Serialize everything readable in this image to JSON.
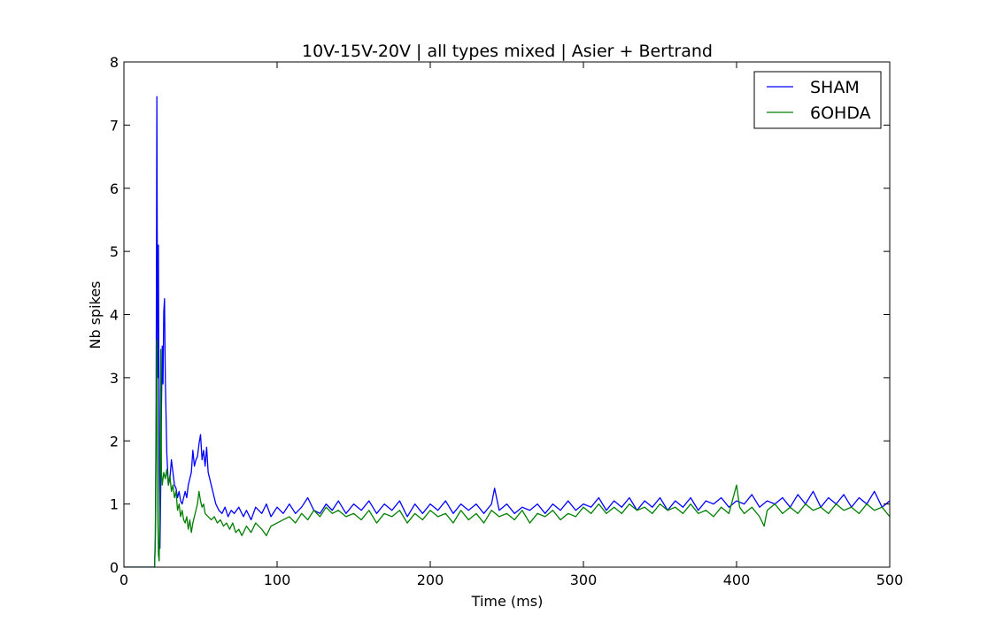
{
  "chart_data": {
    "type": "line",
    "title": "10V-15V-20V | all types mixed | Asier + Bertrand",
    "xlabel": "Time (ms)",
    "ylabel": "Nb spikes",
    "xlim": [
      0,
      500
    ],
    "ylim": [
      0,
      8
    ],
    "xticks": [
      "0",
      "100",
      "200",
      "300",
      "400",
      "500"
    ],
    "yticks": [
      "0",
      "1",
      "2",
      "3",
      "4",
      "5",
      "6",
      "7",
      "8"
    ],
    "grid": false,
    "legend_position": "top-right",
    "series": [
      {
        "name": "SHAM",
        "color": "#0000ff",
        "points": [
          [
            0,
            0
          ],
          [
            20,
            0
          ],
          [
            20.5,
            0.5
          ],
          [
            21,
            2.5
          ],
          [
            21.5,
            7.45
          ],
          [
            22,
            3.0
          ],
          [
            22.5,
            5.1
          ],
          [
            23,
            1.5
          ],
          [
            23.5,
            0.3
          ],
          [
            24,
            1.2
          ],
          [
            24.5,
            2.5
          ],
          [
            25,
            3.5
          ],
          [
            25.5,
            2.9
          ],
          [
            26,
            4.05
          ],
          [
            26.5,
            4.25
          ],
          [
            27,
            3.0
          ],
          [
            28,
            1.8
          ],
          [
            29,
            1.3
          ],
          [
            30,
            1.4
          ],
          [
            31,
            1.7
          ],
          [
            32,
            1.5
          ],
          [
            33,
            1.3
          ],
          [
            34,
            1.25
          ],
          [
            35,
            1.1
          ],
          [
            36,
            1.2
          ],
          [
            37,
            1.05
          ],
          [
            38,
            1.0
          ],
          [
            39,
            1.1
          ],
          [
            40,
            1.2
          ],
          [
            41,
            1.1
          ],
          [
            42,
            1.3
          ],
          [
            43,
            1.4
          ],
          [
            44,
            1.5
          ],
          [
            45,
            1.85
          ],
          [
            46,
            1.6
          ],
          [
            47,
            1.7
          ],
          [
            48,
            1.75
          ],
          [
            49,
            1.95
          ],
          [
            50,
            2.1
          ],
          [
            51,
            1.7
          ],
          [
            52,
            1.85
          ],
          [
            53,
            1.6
          ],
          [
            54,
            1.9
          ],
          [
            55,
            1.5
          ],
          [
            56,
            1.4
          ],
          [
            57,
            1.3
          ],
          [
            58,
            1.2
          ],
          [
            59,
            1.1
          ],
          [
            60,
            1.0
          ],
          [
            62,
            0.9
          ],
          [
            64,
            0.85
          ],
          [
            66,
            0.95
          ],
          [
            68,
            0.8
          ],
          [
            70,
            0.9
          ],
          [
            72,
            0.85
          ],
          [
            75,
            0.95
          ],
          [
            78,
            0.8
          ],
          [
            80,
            0.9
          ],
          [
            83,
            0.75
          ],
          [
            86,
            0.95
          ],
          [
            90,
            0.85
          ],
          [
            93,
            1.0
          ],
          [
            96,
            0.8
          ],
          [
            100,
            0.95
          ],
          [
            104,
            0.85
          ],
          [
            108,
            1.0
          ],
          [
            112,
            0.85
          ],
          [
            116,
            0.95
          ],
          [
            120,
            1.1
          ],
          [
            124,
            0.9
          ],
          [
            128,
            0.85
          ],
          [
            132,
            1.0
          ],
          [
            136,
            0.9
          ],
          [
            140,
            1.05
          ],
          [
            145,
            0.85
          ],
          [
            150,
            1.0
          ],
          [
            155,
            0.9
          ],
          [
            160,
            1.05
          ],
          [
            165,
            0.85
          ],
          [
            170,
            1.0
          ],
          [
            175,
            0.9
          ],
          [
            180,
            1.05
          ],
          [
            185,
            0.8
          ],
          [
            190,
            1.0
          ],
          [
            195,
            0.85
          ],
          [
            200,
            1.0
          ],
          [
            205,
            0.9
          ],
          [
            210,
            1.05
          ],
          [
            215,
            0.85
          ],
          [
            220,
            1.0
          ],
          [
            225,
            0.9
          ],
          [
            230,
            1.0
          ],
          [
            235,
            0.85
          ],
          [
            240,
            1.0
          ],
          [
            242,
            1.25
          ],
          [
            245,
            0.9
          ],
          [
            250,
            1.0
          ],
          [
            255,
            0.85
          ],
          [
            260,
            0.95
          ],
          [
            265,
            0.9
          ],
          [
            270,
            1.0
          ],
          [
            275,
            0.85
          ],
          [
            280,
            1.0
          ],
          [
            285,
            0.9
          ],
          [
            290,
            1.05
          ],
          [
            295,
            0.9
          ],
          [
            300,
            1.0
          ],
          [
            305,
            0.95
          ],
          [
            310,
            1.1
          ],
          [
            315,
            0.9
          ],
          [
            320,
            1.05
          ],
          [
            325,
            0.95
          ],
          [
            330,
            1.1
          ],
          [
            335,
            0.9
          ],
          [
            340,
            1.05
          ],
          [
            345,
            0.95
          ],
          [
            350,
            1.1
          ],
          [
            355,
            0.9
          ],
          [
            360,
            1.05
          ],
          [
            365,
            0.95
          ],
          [
            370,
            1.1
          ],
          [
            375,
            0.9
          ],
          [
            380,
            1.05
          ],
          [
            385,
            1.0
          ],
          [
            390,
            1.1
          ],
          [
            395,
            0.95
          ],
          [
            400,
            1.05
          ],
          [
            405,
            1.0
          ],
          [
            410,
            1.15
          ],
          [
            415,
            0.95
          ],
          [
            420,
            1.05
          ],
          [
            425,
            1.0
          ],
          [
            430,
            1.1
          ],
          [
            435,
            0.95
          ],
          [
            440,
            1.15
          ],
          [
            445,
            1.0
          ],
          [
            450,
            1.2
          ],
          [
            455,
            0.95
          ],
          [
            460,
            1.1
          ],
          [
            465,
            1.0
          ],
          [
            470,
            1.15
          ],
          [
            475,
            0.95
          ],
          [
            480,
            1.1
          ],
          [
            485,
            1.0
          ],
          [
            490,
            1.2
          ],
          [
            495,
            0.95
          ],
          [
            500,
            1.05
          ]
        ]
      },
      {
        "name": "6OHDA",
        "color": "#007f00",
        "points": [
          [
            0,
            0
          ],
          [
            20,
            0
          ],
          [
            20.5,
            0.4
          ],
          [
            21,
            2.0
          ],
          [
            21.5,
            3.6
          ],
          [
            22,
            1.0
          ],
          [
            22.5,
            0.2
          ],
          [
            23,
            0.1
          ],
          [
            23.5,
            1.0
          ],
          [
            24,
            3.45
          ],
          [
            24.5,
            1.5
          ],
          [
            25,
            1.3
          ],
          [
            26,
            1.5
          ],
          [
            27,
            1.4
          ],
          [
            28,
            1.55
          ],
          [
            29,
            1.3
          ],
          [
            30,
            1.45
          ],
          [
            31,
            1.2
          ],
          [
            32,
            1.3
          ],
          [
            33,
            1.1
          ],
          [
            34,
            1.2
          ],
          [
            35,
            0.9
          ],
          [
            36,
            1.0
          ],
          [
            37,
            0.8
          ],
          [
            38,
            0.9
          ],
          [
            39,
            0.75
          ],
          [
            40,
            0.7
          ],
          [
            41,
            0.8
          ],
          [
            42,
            0.6
          ],
          [
            43,
            0.75
          ],
          [
            44,
            0.55
          ],
          [
            45,
            0.7
          ],
          [
            46,
            0.8
          ],
          [
            47,
            0.9
          ],
          [
            48,
            1.0
          ],
          [
            49,
            1.2
          ],
          [
            50,
            1.05
          ],
          [
            51,
            0.95
          ],
          [
            52,
            1.0
          ],
          [
            53,
            0.85
          ],
          [
            55,
            0.8
          ],
          [
            57,
            0.75
          ],
          [
            59,
            0.8
          ],
          [
            61,
            0.7
          ],
          [
            63,
            0.75
          ],
          [
            65,
            0.65
          ],
          [
            67,
            0.7
          ],
          [
            69,
            0.6
          ],
          [
            71,
            0.7
          ],
          [
            73,
            0.55
          ],
          [
            75,
            0.6
          ],
          [
            77,
            0.5
          ],
          [
            80,
            0.65
          ],
          [
            83,
            0.55
          ],
          [
            86,
            0.7
          ],
          [
            90,
            0.6
          ],
          [
            93,
            0.5
          ],
          [
            96,
            0.65
          ],
          [
            100,
            0.7
          ],
          [
            104,
            0.75
          ],
          [
            108,
            0.8
          ],
          [
            112,
            0.7
          ],
          [
            116,
            0.85
          ],
          [
            120,
            0.75
          ],
          [
            124,
            0.9
          ],
          [
            128,
            0.8
          ],
          [
            132,
            0.95
          ],
          [
            136,
            0.85
          ],
          [
            140,
            0.9
          ],
          [
            145,
            0.8
          ],
          [
            150,
            0.85
          ],
          [
            155,
            0.75
          ],
          [
            160,
            0.9
          ],
          [
            165,
            0.7
          ],
          [
            170,
            0.85
          ],
          [
            175,
            0.8
          ],
          [
            180,
            0.9
          ],
          [
            185,
            0.7
          ],
          [
            190,
            0.85
          ],
          [
            195,
            0.75
          ],
          [
            200,
            0.9
          ],
          [
            205,
            0.8
          ],
          [
            210,
            0.85
          ],
          [
            215,
            0.7
          ],
          [
            220,
            0.9
          ],
          [
            225,
            0.75
          ],
          [
            230,
            0.85
          ],
          [
            235,
            0.7
          ],
          [
            240,
            0.9
          ],
          [
            245,
            0.8
          ],
          [
            250,
            0.85
          ],
          [
            255,
            0.75
          ],
          [
            260,
            0.9
          ],
          [
            265,
            0.7
          ],
          [
            270,
            0.85
          ],
          [
            275,
            0.8
          ],
          [
            280,
            0.9
          ],
          [
            285,
            0.75
          ],
          [
            290,
            0.85
          ],
          [
            295,
            0.8
          ],
          [
            300,
            0.95
          ],
          [
            305,
            0.85
          ],
          [
            310,
            1.0
          ],
          [
            315,
            0.85
          ],
          [
            320,
            0.95
          ],
          [
            325,
            0.85
          ],
          [
            330,
            1.0
          ],
          [
            335,
            0.9
          ],
          [
            340,
            0.95
          ],
          [
            345,
            0.85
          ],
          [
            350,
            1.0
          ],
          [
            355,
            0.9
          ],
          [
            360,
            0.95
          ],
          [
            365,
            0.85
          ],
          [
            370,
            1.0
          ],
          [
            375,
            0.85
          ],
          [
            380,
            0.9
          ],
          [
            385,
            0.8
          ],
          [
            390,
            0.95
          ],
          [
            395,
            0.85
          ],
          [
            400,
            1.3
          ],
          [
            402,
            0.95
          ],
          [
            405,
            0.85
          ],
          [
            410,
            0.95
          ],
          [
            415,
            0.8
          ],
          [
            418,
            0.65
          ],
          [
            420,
            0.9
          ],
          [
            425,
            1.0
          ],
          [
            430,
            0.85
          ],
          [
            435,
            0.95
          ],
          [
            440,
            0.85
          ],
          [
            445,
            1.0
          ],
          [
            450,
            0.9
          ],
          [
            455,
            0.95
          ],
          [
            460,
            0.85
          ],
          [
            465,
            1.0
          ],
          [
            470,
            0.9
          ],
          [
            475,
            0.95
          ],
          [
            480,
            0.85
          ],
          [
            485,
            1.0
          ],
          [
            490,
            0.9
          ],
          [
            495,
            0.95
          ],
          [
            500,
            0.8
          ]
        ]
      }
    ]
  }
}
